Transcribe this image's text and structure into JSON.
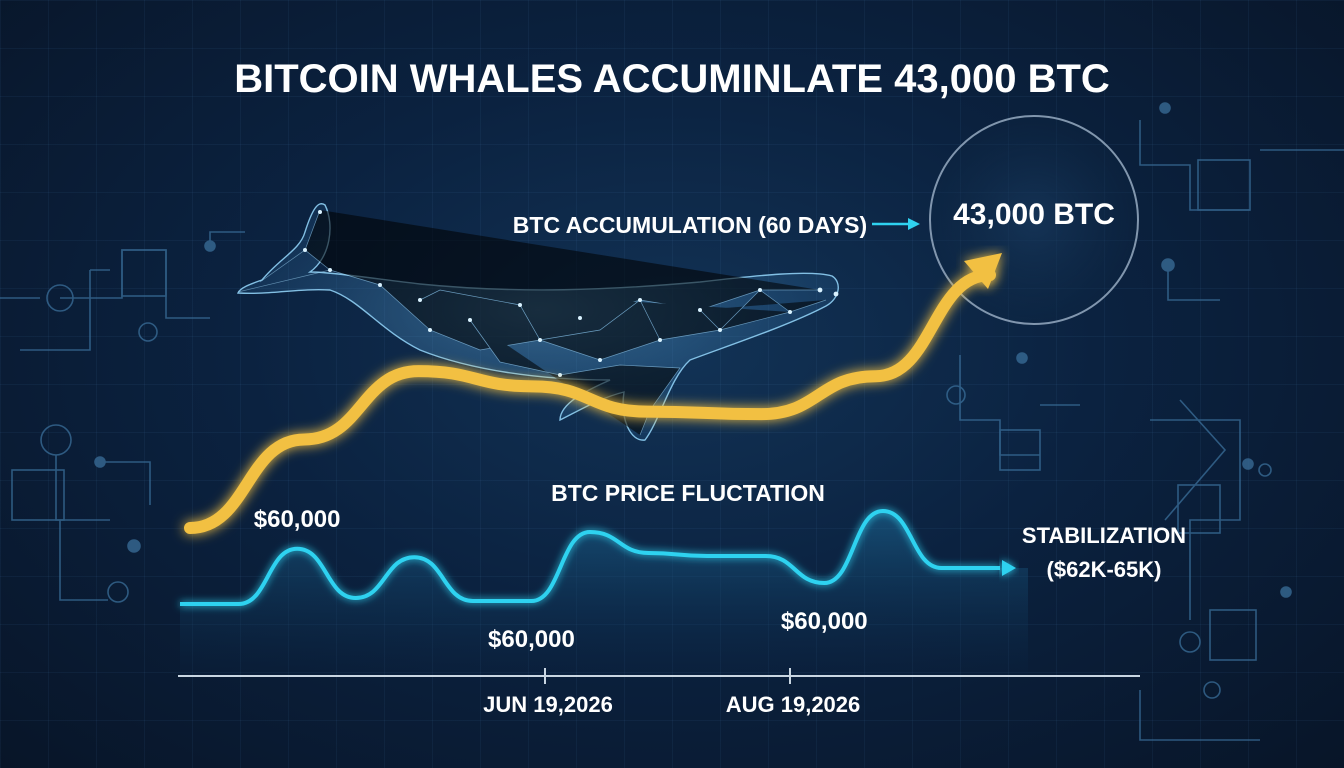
{
  "title": "BITCOIN WHALES ACCUMINLATE 43,000 BTC",
  "accumulation": {
    "label": "BTC ACCUMULATION (60 DAYS)",
    "value_text": "43,000 BTC"
  },
  "price_section": {
    "title": "BTC PRICE FLUCTATION",
    "stabilization_line1": "STABILIZATION",
    "stabilization_line2": "($62K-65K)"
  },
  "colors": {
    "accumulation": "#f2c043",
    "price": "#2fd2f0",
    "background": "#0b2240"
  },
  "icons": [
    "whale-icon",
    "circuit-decoration"
  ],
  "chart_data": {
    "type": "line",
    "x_ticks": [
      "JUN 19,2026",
      "AUG 19,2026"
    ],
    "series": [
      {
        "name": "BTC ACCUMULATION (60 DAYS)",
        "trend": [
          0,
          0.35,
          0.62,
          0.56,
          0.46,
          0.45,
          0.6,
          1.0
        ],
        "end_label": "43,000 BTC"
      },
      {
        "name": "BTC PRICE FLUCTATION",
        "values": [
          0,
          0,
          0.92,
          0.1,
          0.78,
          0.05,
          0.05,
          1.2,
          0.85,
          0.8,
          0.8,
          0.35,
          1.55,
          0.6,
          0.6
        ],
        "annotations": [
          {
            "text": "$60,000",
            "index": 2
          },
          {
            "text": "$60,000",
            "index": 6
          },
          {
            "text": "$60,000",
            "index": 11
          }
        ]
      }
    ]
  }
}
